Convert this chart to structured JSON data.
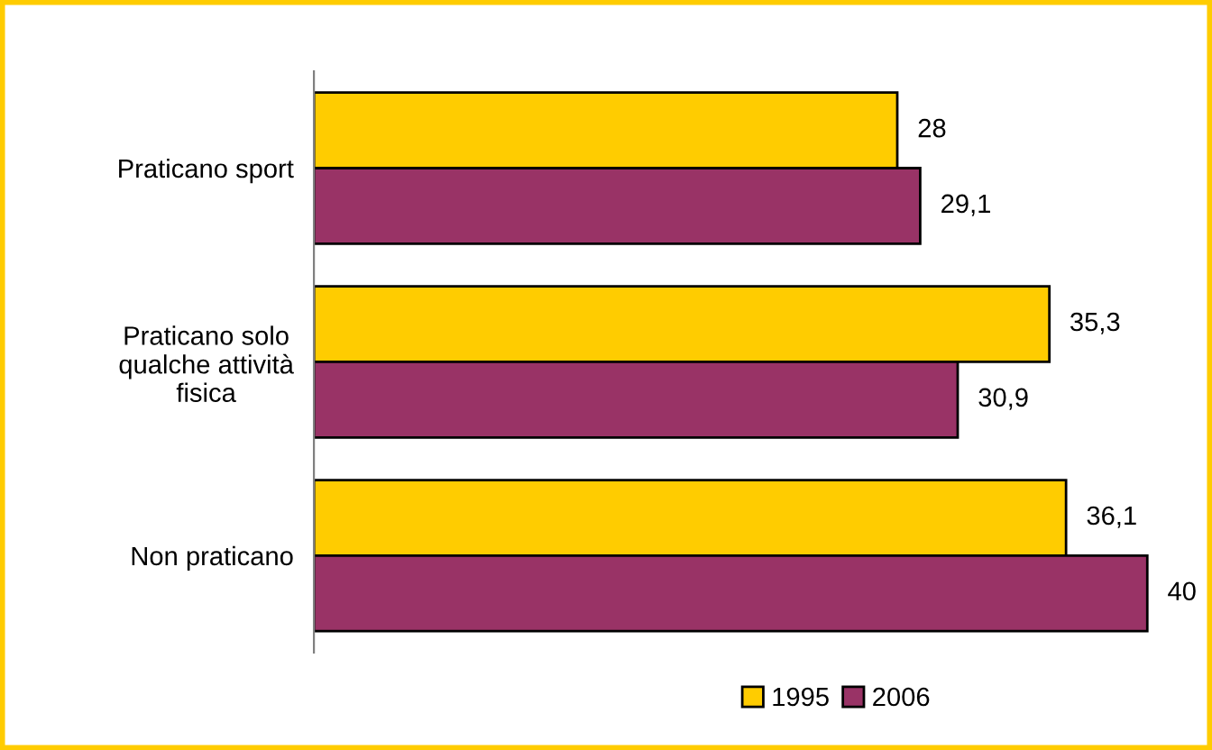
{
  "chart_data": {
    "type": "bar",
    "orientation": "horizontal",
    "tick_labels": "y",
    "categories": [
      "Praticano sport",
      "Praticano solo\nqualche attività\nfisica",
      "Non praticano"
    ],
    "series": [
      {
        "name": "1995",
        "color": "#ffcc00",
        "values": [
          28,
          35.3,
          36.1
        ],
        "value_labels": [
          "28",
          "35,3",
          "36,1"
        ]
      },
      {
        "name": "2006",
        "color": "#993366",
        "values": [
          29.1,
          30.9,
          40
        ],
        "value_labels": [
          "29,1",
          "30,9",
          "40"
        ]
      }
    ],
    "legend": "bottom",
    "grid": false
  }
}
